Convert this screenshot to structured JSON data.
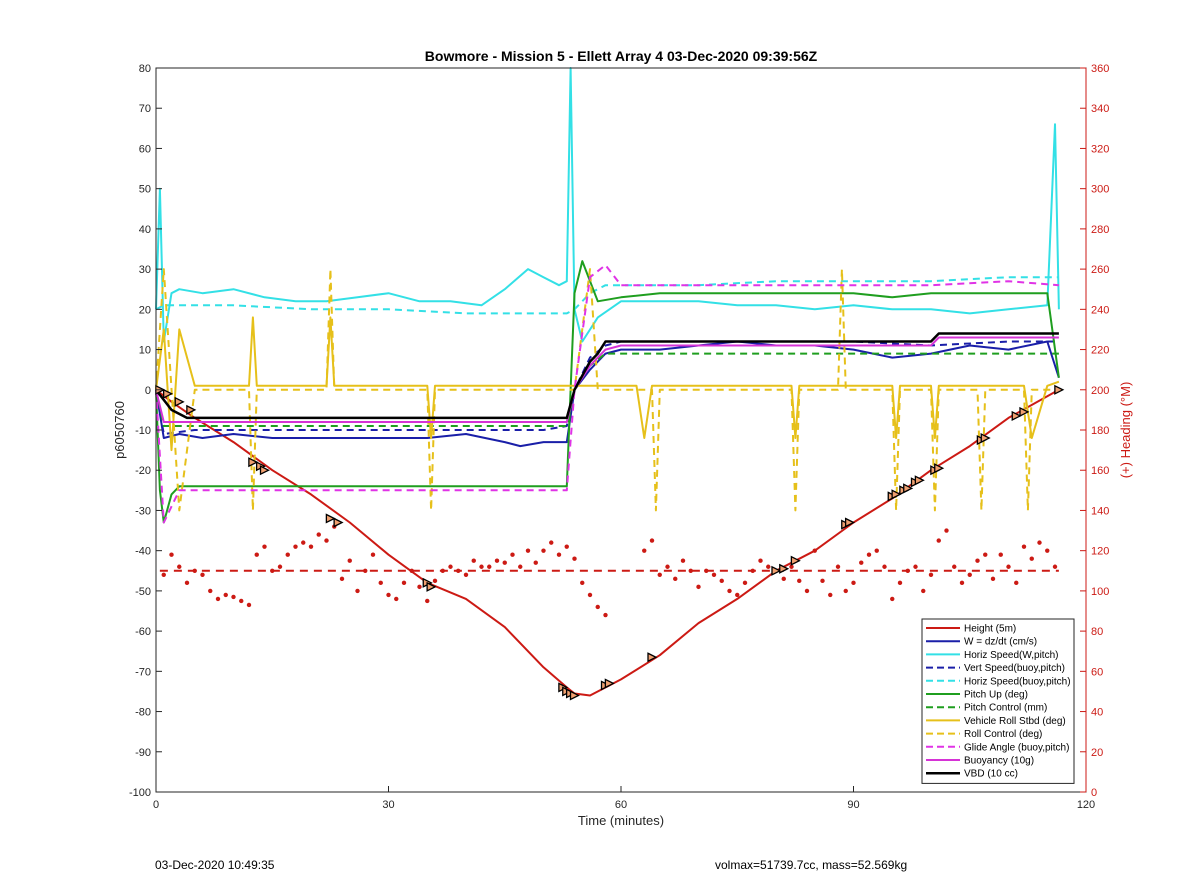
{
  "chart_data": {
    "type": "line",
    "title": "Bowmore - Mission 5 - Ellett Array 4 03-Dec-2020 09:39:56Z",
    "xlabel": "Time (minutes)",
    "ylabel": "p6050760",
    "y2label": "(+) Heading (°M)",
    "xlim": [
      0,
      120
    ],
    "ylim": [
      -100,
      80
    ],
    "y2lim": [
      0,
      360
    ],
    "x_ticks": [
      0,
      30,
      60,
      90,
      120
    ],
    "y_ticks": [
      -100,
      -90,
      -80,
      -70,
      -60,
      -50,
      -40,
      -30,
      -20,
      -10,
      0,
      10,
      20,
      30,
      40,
      50,
      60,
      70,
      80
    ],
    "y2_ticks": [
      0,
      20,
      40,
      60,
      80,
      100,
      120,
      140,
      160,
      180,
      200,
      220,
      240,
      260,
      280,
      300,
      320,
      340,
      360
    ],
    "grid": false,
    "legend_position": "bottom-right",
    "series": [
      {
        "name": "Height (5m)",
        "color": "#cc1a14",
        "dash": false,
        "width": 2,
        "x": [
          0,
          2,
          5,
          10,
          15,
          20,
          25,
          30,
          35,
          40,
          45,
          50,
          53,
          54,
          56,
          60,
          65,
          70,
          75,
          80,
          85,
          90,
          95,
          100,
          105,
          110,
          116.5
        ],
        "y": [
          0,
          -3,
          -7,
          -13,
          -20,
          -26,
          -33,
          -41,
          -48,
          -52,
          -59,
          -69,
          -74,
          -75.5,
          -76,
          -72,
          -66,
          -58,
          -52,
          -45,
          -40,
          -33,
          -27,
          -20,
          -14,
          -7,
          0
        ]
      },
      {
        "name": "W = dz/dt (cm/s)",
        "color": "#1a1fa8",
        "dash": false,
        "width": 2,
        "x": [
          0,
          1,
          3,
          6,
          10,
          15,
          20,
          25,
          30,
          35,
          40,
          45,
          47,
          50,
          53,
          54,
          56,
          58,
          60,
          65,
          70,
          75,
          80,
          85,
          90,
          95,
          100,
          105,
          110,
          115,
          116.5
        ],
        "y": [
          0,
          -12,
          -11,
          -12,
          -11,
          -12,
          -12,
          -12,
          -12,
          -12,
          -11,
          -13,
          -14,
          -13,
          -13,
          0,
          5,
          9,
          10,
          10,
          11,
          12,
          11,
          11,
          10,
          8,
          9,
          11,
          10,
          12,
          3
        ]
      },
      {
        "name": "Horiz Speed(W,pitch)",
        "color": "#33e0e6",
        "dash": false,
        "width": 2,
        "x": [
          0,
          0.5,
          1,
          2,
          3,
          6,
          10,
          14,
          18,
          22,
          26,
          30,
          34,
          38,
          42,
          45,
          48,
          50,
          52,
          53,
          53.5,
          54,
          55,
          57,
          60,
          65,
          70,
          75,
          80,
          85,
          90,
          95,
          100,
          105,
          110,
          115,
          116,
          116.5
        ],
        "y": [
          20,
          50,
          12,
          24,
          25,
          24,
          25,
          23,
          22,
          22,
          23,
          24,
          22,
          22,
          21,
          25,
          30,
          28,
          26,
          27,
          80,
          20,
          12,
          18,
          22,
          22,
          22,
          21,
          21,
          20,
          21,
          20,
          20,
          19,
          20,
          21,
          66,
          20
        ]
      },
      {
        "name": "Vert Speed(buoy,pitch)",
        "color": "#1a1fa8",
        "dash": true,
        "width": 2,
        "x": [
          0,
          1,
          5,
          10,
          20,
          30,
          40,
          50,
          53,
          54,
          56,
          58,
          60,
          70,
          80,
          90,
          100,
          110,
          116.5
        ],
        "y": [
          0,
          -11,
          -10,
          -10,
          -10,
          -10,
          -10,
          -10,
          -9,
          0,
          8,
          11,
          12,
          12,
          12,
          12,
          11,
          12,
          12
        ]
      },
      {
        "name": "Horiz Speed(buoy,pitch)",
        "color": "#33e0e6",
        "dash": true,
        "width": 2,
        "x": [
          0,
          1,
          5,
          10,
          20,
          30,
          40,
          50,
          53,
          54,
          56,
          58,
          60,
          70,
          80,
          90,
          100,
          110,
          116.5
        ],
        "y": [
          20,
          21,
          21,
          21,
          20,
          20,
          19,
          19,
          19,
          20,
          24,
          26,
          26,
          26,
          27,
          27,
          27,
          28,
          28
        ]
      },
      {
        "name": "Pitch Up (deg)",
        "color": "#1f9e1f",
        "dash": false,
        "width": 2,
        "x": [
          0,
          0.5,
          1,
          2,
          3,
          6,
          10,
          15,
          20,
          25,
          30,
          35,
          40,
          45,
          50,
          53,
          53.5,
          54,
          55,
          57,
          60,
          65,
          70,
          75,
          80,
          85,
          90,
          95,
          100,
          105,
          110,
          115,
          116.5
        ],
        "y": [
          0,
          -25,
          -33,
          -26,
          -24,
          -24,
          -24,
          -24,
          -24,
          -24,
          -24,
          -24,
          -24,
          -24,
          -24,
          -24,
          0,
          24,
          32,
          22,
          23,
          24,
          24,
          24,
          24,
          24,
          24,
          23,
          24,
          24,
          24,
          24,
          3
        ]
      },
      {
        "name": "Pitch Control (mm)",
        "color": "#1f9e1f",
        "dash": true,
        "width": 2,
        "x": [
          0,
          1,
          5,
          10,
          20,
          30,
          40,
          50,
          53,
          54,
          56,
          58,
          60,
          70,
          80,
          90,
          100,
          110,
          116.5
        ],
        "y": [
          0,
          -9,
          -9,
          -9,
          -9,
          -9,
          -9,
          -9,
          -9,
          0,
          6,
          9,
          9,
          9,
          9,
          9,
          9,
          9,
          9
        ]
      },
      {
        "name": "Vehicle Roll Stbd (deg)",
        "color": "#e6c01a",
        "dash": false,
        "width": 2,
        "x": [
          0,
          1,
          2,
          3,
          5,
          10,
          12,
          12.5,
          13,
          20,
          22,
          22.5,
          23,
          30,
          35,
          35.5,
          36,
          45,
          50,
          53,
          54,
          56,
          58,
          62,
          63,
          64,
          70,
          80,
          82,
          82.5,
          83,
          90,
          95,
          95.5,
          96,
          100,
          100.5,
          101,
          105,
          110,
          112,
          113,
          115,
          116.5
        ],
        "y": [
          0,
          15,
          -15,
          15,
          1,
          1,
          1,
          18,
          1,
          1,
          1,
          18,
          1,
          1,
          1,
          -12,
          1,
          1,
          1,
          1,
          1,
          1,
          1,
          1,
          -12,
          1,
          1,
          1,
          1,
          -12,
          1,
          1,
          1,
          -12,
          1,
          1,
          -12,
          1,
          1,
          1,
          1,
          -12,
          1,
          2
        ]
      },
      {
        "name": "Roll Control (deg)",
        "color": "#e6c01a",
        "dash": true,
        "width": 2,
        "x": [
          0,
          1,
          3,
          5,
          12,
          12.5,
          13,
          22,
          22.5,
          23,
          35,
          35.5,
          36,
          53,
          54,
          56,
          57,
          58,
          64,
          64.5,
          65,
          82,
          82.5,
          83,
          88,
          88.5,
          89,
          95,
          95.5,
          96,
          100,
          100.5,
          101,
          106,
          106.5,
          107,
          112,
          112.5,
          113,
          116.5
        ],
        "y": [
          0,
          30,
          -30,
          0,
          0,
          -30,
          0,
          0,
          30,
          0,
          0,
          -30,
          0,
          0,
          0,
          30,
          0,
          0,
          0,
          -30,
          0,
          0,
          -30,
          0,
          0,
          30,
          0,
          0,
          -30,
          0,
          0,
          -30,
          0,
          0,
          -30,
          0,
          0,
          -30,
          0,
          0
        ]
      },
      {
        "name": "Glide Angle (buoy,pitch)",
        "color": "#e033e6",
        "dash": true,
        "width": 2,
        "x": [
          0,
          1,
          3,
          10,
          20,
          30,
          40,
          50,
          53,
          54,
          56,
          58,
          60,
          70,
          80,
          90,
          100,
          110,
          116.5
        ],
        "y": [
          0,
          -33,
          -25,
          -25,
          -25,
          -25,
          -25,
          -25,
          -25,
          0,
          28,
          31,
          26,
          26,
          26,
          26,
          26,
          27,
          26
        ]
      },
      {
        "name": "Buoyancy (10g)",
        "color": "#d633d6",
        "dash": false,
        "width": 2,
        "x": [
          0,
          1,
          5,
          10,
          20,
          30,
          40,
          50,
          53,
          54,
          56,
          58,
          60,
          70,
          80,
          90,
          100,
          101,
          110,
          116.5
        ],
        "y": [
          0,
          -8,
          -8,
          -8,
          -8,
          -8,
          -8,
          -8,
          -8,
          0,
          6,
          10,
          11,
          11,
          11,
          11,
          11,
          13,
          13,
          13
        ]
      },
      {
        "name": "VBD (10 cc)",
        "color": "#000000",
        "dash": false,
        "width": 2.5,
        "x": [
          0,
          2,
          4,
          10,
          20,
          30,
          40,
          50,
          53,
          54,
          56,
          57,
          58,
          60,
          70,
          80,
          90,
          100,
          101,
          110,
          116.5
        ],
        "y": [
          0,
          -5,
          -7,
          -7,
          -7,
          -7,
          -7,
          -7,
          -7,
          0,
          7,
          9,
          12,
          12,
          12,
          12,
          12,
          12,
          14,
          14,
          14
        ]
      }
    ],
    "heading": {
      "name": "Heading",
      "axis": "right",
      "color": "#cc1a14",
      "desired": 110,
      "x": [
        1,
        2,
        3,
        4,
        5,
        6,
        7,
        8,
        9,
        10,
        11,
        12,
        13,
        14,
        15,
        16,
        17,
        18,
        19,
        20,
        21,
        22,
        23,
        24,
        25,
        26,
        27,
        28,
        29,
        30,
        31,
        32,
        33,
        34,
        35,
        36,
        37,
        38,
        39,
        40,
        41,
        42,
        43,
        44,
        45,
        46,
        47,
        48,
        49,
        50,
        51,
        52,
        53,
        54,
        55,
        56,
        57,
        58,
        63,
        64,
        65,
        66,
        67,
        68,
        69,
        70,
        71,
        72,
        73,
        74,
        75,
        76,
        77,
        78,
        79,
        80,
        81,
        82,
        83,
        84,
        85,
        86,
        87,
        88,
        89,
        90,
        91,
        92,
        93,
        94,
        95,
        96,
        97,
        98,
        99,
        100,
        101,
        102,
        103,
        104,
        105,
        106,
        107,
        108,
        109,
        110,
        111,
        112,
        113,
        114,
        115,
        116
      ],
      "y": [
        108,
        118,
        112,
        104,
        110,
        108,
        100,
        96,
        98,
        97,
        95,
        93,
        118,
        122,
        110,
        112,
        118,
        122,
        124,
        122,
        128,
        125,
        132,
        106,
        115,
        100,
        110,
        118,
        104,
        98,
        96,
        104,
        110,
        102,
        95,
        105,
        110,
        112,
        110,
        108,
        115,
        112,
        112,
        115,
        114,
        118,
        112,
        120,
        114,
        120,
        124,
        118,
        122,
        116,
        104,
        98,
        92,
        88,
        120,
        125,
        108,
        112,
        106,
        115,
        110,
        102,
        110,
        108,
        105,
        100,
        98,
        104,
        110,
        115,
        112,
        110,
        106,
        112,
        105,
        100,
        120,
        105,
        98,
        112,
        100,
        104,
        114,
        118,
        120,
        112,
        96,
        104,
        110,
        112,
        100,
        108,
        125,
        130,
        112,
        104,
        108,
        115,
        118,
        106,
        118,
        112,
        104,
        122,
        116,
        124,
        120,
        112
      ]
    },
    "markers": {
      "color": "#000000",
      "x": [
        0.5,
        1.5,
        3,
        4.5,
        12.5,
        13.5,
        14,
        22.5,
        23.5,
        35,
        35.5,
        52.5,
        53,
        53.5,
        54,
        58,
        58.5,
        64,
        80,
        81,
        82.5,
        89,
        89.5,
        95,
        95.5,
        96.5,
        97,
        98,
        98.5,
        100.5,
        101,
        106.5,
        107,
        111,
        112,
        116.5
      ],
      "y": [
        0,
        -1,
        -3,
        -5,
        -18,
        -19,
        -20,
        -32,
        -33,
        -48,
        -49,
        -74,
        -75,
        -75.5,
        -76,
        -73.5,
        -73,
        -66.5,
        -45,
        -44.5,
        -42.5,
        -33.5,
        -33,
        -26.5,
        -26,
        -25,
        -24.5,
        -23,
        -22.5,
        -20,
        -19.5,
        -12.5,
        -12,
        -6.5,
        -5.5,
        0
      ]
    }
  },
  "footer": {
    "left": "03-Dec-2020 10:49:35",
    "right": "volmax=51739.7cc, mass=52.569kg"
  }
}
